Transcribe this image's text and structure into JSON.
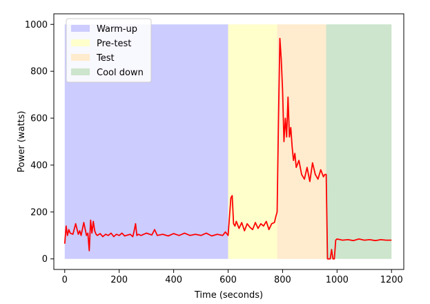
{
  "chart_data": {
    "type": "area",
    "title": "",
    "xlabel": "Time (seconds)",
    "ylabel": "Power (watts)",
    "xlim": [
      -40,
      1245
    ],
    "ylim": [
      -45,
      1045
    ],
    "xticks": [
      0,
      200,
      400,
      600,
      800,
      1000,
      1200
    ],
    "yticks": [
      0,
      200,
      400,
      600,
      800,
      1000
    ],
    "grid": false,
    "legend_position": "top-left",
    "phases": [
      {
        "name": "Warm-up",
        "x_start": 0,
        "x_end": 600,
        "y_max": 1000,
        "color": "#ccccff"
      },
      {
        "name": "Pre-test",
        "x_start": 600,
        "x_end": 780,
        "y_max": 1000,
        "color": "#ffffcc"
      },
      {
        "name": "Test",
        "x_start": 780,
        "x_end": 960,
        "y_max": 1000,
        "color": "#ffebcd"
      },
      {
        "name": "Cool down",
        "x_start": 960,
        "x_end": 1200,
        "y_max": 1000,
        "color": "#cce5cc"
      }
    ],
    "series": [
      {
        "color": "#ff0000",
        "x": [
          0,
          5,
          10,
          15,
          20,
          30,
          40,
          50,
          55,
          60,
          70,
          80,
          85,
          90,
          95,
          100,
          105,
          110,
          115,
          120,
          130,
          140,
          150,
          160,
          170,
          180,
          190,
          200,
          210,
          220,
          240,
          250,
          255,
          260,
          265,
          270,
          280,
          300,
          320,
          330,
          340,
          360,
          380,
          400,
          420,
          440,
          460,
          480,
          500,
          520,
          540,
          560,
          580,
          590,
          600,
          605,
          610,
          615,
          620,
          625,
          630,
          640,
          650,
          660,
          670,
          680,
          690,
          700,
          710,
          720,
          730,
          740,
          750,
          760,
          770,
          775,
          780,
          785,
          790,
          795,
          800,
          805,
          810,
          815,
          820,
          825,
          830,
          835,
          840,
          845,
          850,
          860,
          870,
          880,
          890,
          900,
          910,
          920,
          930,
          940,
          950,
          955,
          960,
          965,
          970,
          975,
          980,
          985,
          990,
          995,
          1000,
          1020,
          1040,
          1060,
          1080,
          1100,
          1120,
          1140,
          1150,
          1160,
          1180,
          1200
        ],
        "y": [
          65,
          140,
          100,
          125,
          110,
          105,
          150,
          105,
          120,
          100,
          155,
          100,
          110,
          35,
          165,
          110,
          160,
          120,
          105,
          100,
          108,
          95,
          105,
          100,
          110,
          95,
          105,
          100,
          110,
          98,
          105,
          95,
          120,
          150,
          100,
          105,
          100,
          110,
          102,
          125,
          100,
          105,
          98,
          108,
          100,
          110,
          100,
          105,
          100,
          110,
          98,
          105,
          100,
          115,
          100,
          180,
          260,
          270,
          150,
          140,
          160,
          130,
          155,
          120,
          150,
          135,
          125,
          155,
          130,
          150,
          140,
          160,
          125,
          150,
          155,
          180,
          200,
          600,
          940,
          850,
          720,
          500,
          600,
          520,
          690,
          520,
          560,
          480,
          420,
          450,
          390,
          420,
          360,
          340,
          390,
          330,
          410,
          360,
          340,
          380,
          350,
          360,
          360,
          0,
          0,
          0,
          40,
          0,
          0,
          80,
          85,
          80,
          82,
          78,
          85,
          80,
          82,
          78,
          80,
          82,
          80,
          80
        ]
      }
    ]
  }
}
